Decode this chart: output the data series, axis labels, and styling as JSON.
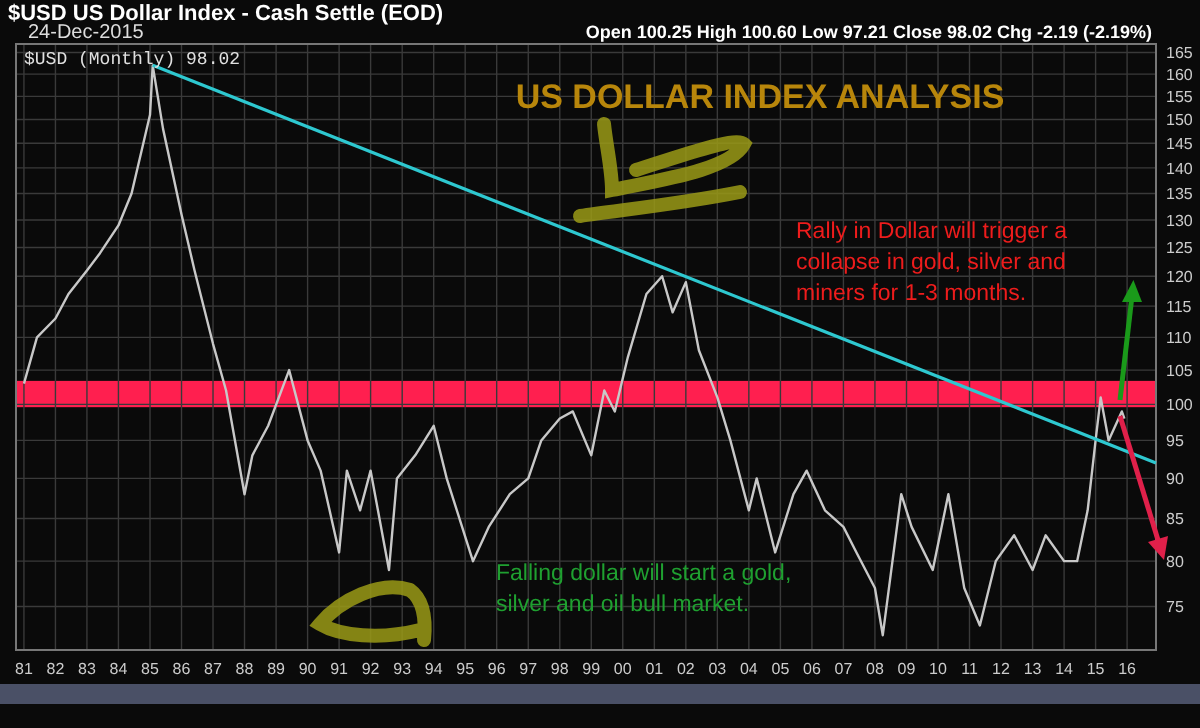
{
  "chart_data": {
    "type": "line",
    "title": "US DOLLAR INDEX ANALYSIS",
    "subtitle": "$USD US Dollar Index - Cash Settle (EOD)",
    "annotations": [
      "24-Dec-2015",
      "Open 100.25 High 100.60 Low 97.21 Close 98.02 Chg -2.19 (-2.19%)",
      "$USD (Monthly) 98.02",
      "Rally in Dollar will trigger a\ncollapse in gold, silver and\nminers for 1-3 months.",
      "Falling dollar will start a gold,\nsilver and oil bull market."
    ],
    "series": [
      {
        "color": "#c8c8c8",
        "x": [
          "1981-01",
          "1981-06",
          "1982-01",
          "1982-06",
          "1983-01",
          "1983-06",
          "1984-01",
          "1984-06",
          "1985-01",
          "1985-02",
          "1985-06",
          "1986-01",
          "1986-06",
          "1987-01",
          "1987-06",
          "1988-01",
          "1988-04",
          "1988-10",
          "1989-06",
          "1990-01",
          "1990-06",
          "1991-01",
          "1991-04",
          "1991-09",
          "1992-01",
          "1992-08",
          "1992-11",
          "1993-06",
          "1994-01",
          "1994-06",
          "1995-04",
          "1995-10",
          "1996-06",
          "1997-01",
          "1997-06",
          "1998-01",
          "1998-06",
          "1999-01",
          "1999-06",
          "1999-10",
          "2000-03",
          "2000-10",
          "2001-04",
          "2001-08",
          "2002-01",
          "2002-06",
          "2003-01",
          "2003-06",
          "2004-01",
          "2004-04",
          "2004-11",
          "2005-06",
          "2005-11",
          "2006-06",
          "2007-01",
          "2007-06",
          "2008-01",
          "2008-04",
          "2008-11",
          "2009-03",
          "2009-11",
          "2010-05",
          "2010-11",
          "2011-05",
          "2011-11",
          "2012-06",
          "2013-01",
          "2013-06",
          "2014-01",
          "2014-06",
          "2014-10",
          "2015-01",
          "2015-03",
          "2015-06",
          "2015-11",
          "2015-12"
        ],
        "values": [
          103,
          110,
          113,
          117,
          121,
          124,
          129,
          135,
          151,
          162,
          148,
          131,
          121,
          109,
          102,
          88,
          93,
          97,
          105,
          95,
          91,
          81,
          91,
          86,
          91,
          79,
          90,
          93,
          97,
          90,
          80,
          84,
          88,
          90,
          95,
          98,
          99,
          93,
          102,
          99,
          107,
          117,
          120,
          114,
          119,
          108,
          101,
          95,
          86,
          90,
          81,
          88,
          91,
          86,
          84,
          81,
          77,
          72,
          88,
          84,
          79,
          88,
          77,
          73,
          80,
          83,
          79,
          83,
          80,
          80,
          86,
          95,
          101,
          95,
          99,
          98
        ]
      },
      {
        "type": "line",
        "color": "#2ec8d0",
        "x": [
          "1985-02",
          "2016-12"
        ],
        "values": [
          162,
          92
        ]
      }
    ],
    "bands": [
      {
        "axis": "y",
        "from": 99.6,
        "to": 103.4,
        "color": "#ff1f4f"
      }
    ],
    "xlim": [
      "1980-10",
      "2016-12"
    ],
    "xticks": [
      {
        "value": "1981",
        "label": "81"
      },
      {
        "value": "1982",
        "label": "82"
      },
      {
        "value": "1983",
        "label": "83"
      },
      {
        "value": "1984",
        "label": "84"
      },
      {
        "value": "1985",
        "label": "85"
      },
      {
        "value": "1986",
        "label": "86"
      },
      {
        "value": "1987",
        "label": "87"
      },
      {
        "value": "1988",
        "label": "88"
      },
      {
        "value": "1989",
        "label": "89"
      },
      {
        "value": "1990",
        "label": "90"
      },
      {
        "value": "1991",
        "label": "91"
      },
      {
        "value": "1992",
        "label": "92"
      },
      {
        "value": "1993",
        "label": "93"
      },
      {
        "value": "1994",
        "label": "94"
      },
      {
        "value": "1995",
        "label": "95"
      },
      {
        "value": "1996",
        "label": "96"
      },
      {
        "value": "1997",
        "label": "97"
      },
      {
        "value": "1998",
        "label": "98"
      },
      {
        "value": "1999",
        "label": "99"
      },
      {
        "value": "2000",
        "label": "00"
      },
      {
        "value": "2001",
        "label": "01"
      },
      {
        "value": "2002",
        "label": "02"
      },
      {
        "value": "2003",
        "label": "03"
      },
      {
        "value": "2004",
        "label": "04"
      },
      {
        "value": "2005",
        "label": "05"
      },
      {
        "value": "2006",
        "label": "06"
      },
      {
        "value": "2007",
        "label": "07"
      },
      {
        "value": "2008",
        "label": "08"
      },
      {
        "value": "2009",
        "label": "09"
      },
      {
        "value": "2010",
        "label": "10"
      },
      {
        "value": "2011",
        "label": "11"
      },
      {
        "value": "2012",
        "label": "12"
      },
      {
        "value": "2013",
        "label": "13"
      },
      {
        "value": "2014",
        "label": "14"
      },
      {
        "value": "2015",
        "label": "15"
      },
      {
        "value": "2016",
        "label": "16"
      }
    ],
    "ylim": [
      70.5,
      167
    ],
    "yticks": [
      75,
      80,
      85,
      90,
      95,
      100,
      105,
      110,
      115,
      120,
      125,
      130,
      135,
      140,
      145,
      150,
      155,
      160,
      165
    ],
    "log": true,
    "grid": true,
    "marker": "none",
    "line_style": "solid"
  }
}
